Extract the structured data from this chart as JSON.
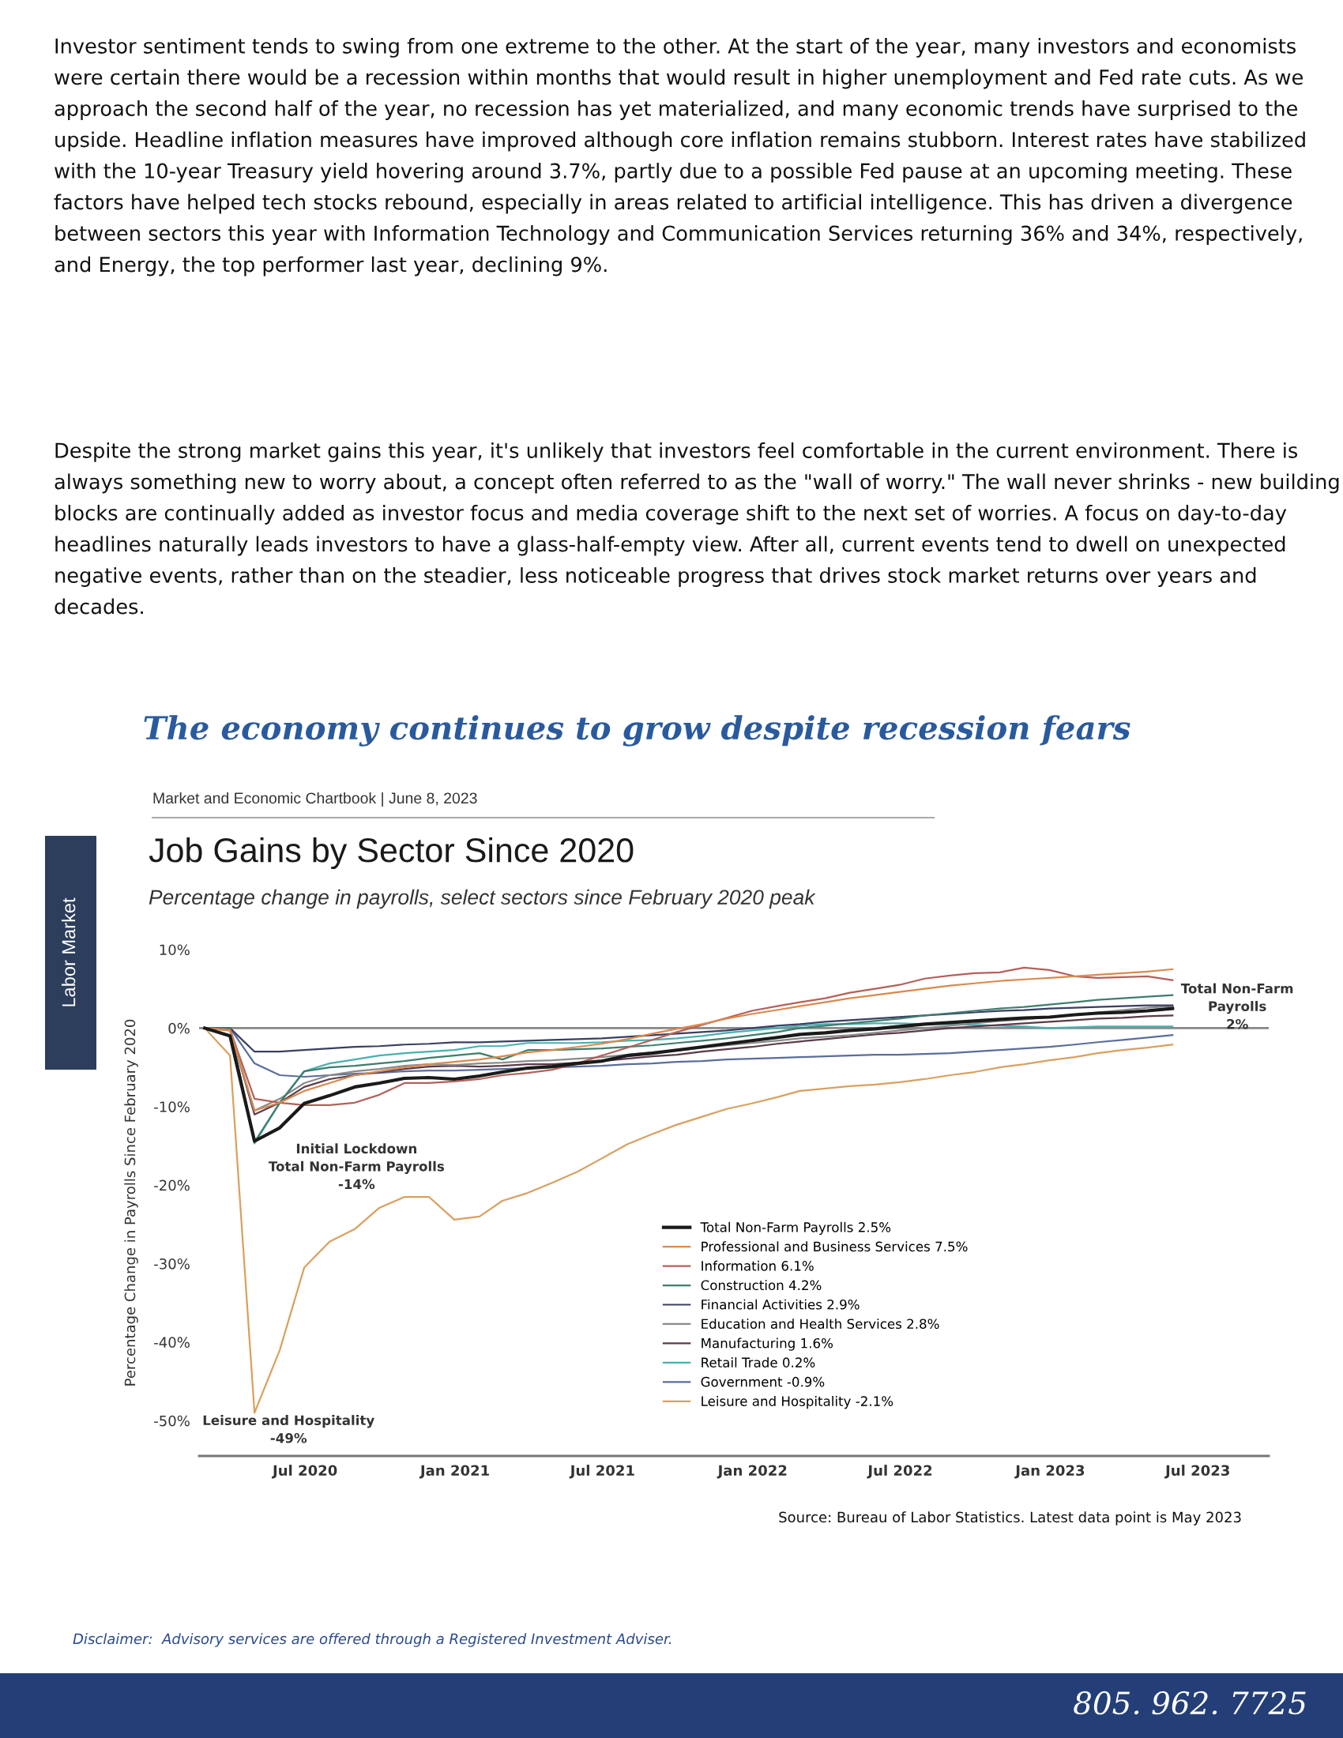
{
  "chart_data": {
    "type": "line",
    "title": "Job Gains by Sector Since 2020",
    "subtitle": "Percentage change in payrolls, select sectors since February 2020 peak",
    "ylabel": "Percentage Change in Payrolls Since February 2020",
    "x": [
      "2020-02-29",
      "2020-03-31",
      "2020-04-30",
      "2020-05-31",
      "2020-06-30",
      "2020-07-31",
      "2020-08-31",
      "2020-09-30",
      "2020-10-31",
      "2020-11-30",
      "2020-12-31",
      "2021-01-31",
      "2021-02-28",
      "2021-03-31",
      "2021-04-30",
      "2021-05-31",
      "2021-06-30",
      "2021-07-31",
      "2021-08-31",
      "2021-09-30",
      "2021-10-31",
      "2021-11-30",
      "2021-12-31",
      "2022-01-31",
      "2022-02-28",
      "2022-03-31",
      "2022-04-30",
      "2022-05-31",
      "2022-06-30",
      "2022-07-31",
      "2022-08-31",
      "2022-09-30",
      "2022-10-31",
      "2022-11-30",
      "2022-12-31",
      "2023-01-31",
      "2023-02-28",
      "2023-03-31",
      "2023-04-30",
      "2023-05-31"
    ],
    "series": [
      {
        "name": "Total Non-Farm Payrolls 2.5%",
        "color": "#1a1a1a",
        "values": [
          0,
          -1.0,
          -14.4,
          -12.7,
          -9.6,
          -8.6,
          -7.5,
          -7.0,
          -6.4,
          -6.3,
          -6.5,
          -6.1,
          -5.6,
          -5.1,
          -4.9,
          -4.5,
          -4.2,
          -3.5,
          -3.2,
          -2.8,
          -2.4,
          -2.0,
          -1.6,
          -1.2,
          -0.8,
          -0.6,
          -0.3,
          -0.1,
          0.2,
          0.5,
          0.7,
          0.9,
          1.1,
          1.3,
          1.4,
          1.7,
          1.9,
          2.0,
          2.2,
          2.5
        ]
      },
      {
        "name": "Professional and Business Services 7.5%",
        "color": "#d98a4e",
        "values": [
          0,
          -0.3,
          -10.5,
          -9.5,
          -8.0,
          -7.0,
          -6.0,
          -5.5,
          -5.0,
          -4.6,
          -4.3,
          -4.0,
          -3.6,
          -3.1,
          -2.8,
          -2.4,
          -2.0,
          -1.4,
          -0.7,
          -0.1,
          0.5,
          1.2,
          1.8,
          2.3,
          2.8,
          3.3,
          3.8,
          4.2,
          4.6,
          5.0,
          5.4,
          5.7,
          6.0,
          6.2,
          6.4,
          6.6,
          6.8,
          7.0,
          7.2,
          7.5
        ]
      },
      {
        "name": "Information 6.1%",
        "color": "#b5605a",
        "values": [
          0,
          -0.2,
          -9.0,
          -9.5,
          -9.8,
          -9.8,
          -9.5,
          -8.5,
          -7.0,
          -7.0,
          -6.8,
          -6.5,
          -6.0,
          -5.7,
          -5.3,
          -4.5,
          -3.5,
          -2.5,
          -1.5,
          -0.5,
          0.4,
          1.3,
          2.2,
          2.8,
          3.3,
          3.8,
          4.5,
          5.0,
          5.5,
          6.3,
          6.7,
          7.0,
          7.1,
          7.7,
          7.4,
          6.6,
          6.4,
          6.5,
          6.6,
          6.1
        ]
      },
      {
        "name": "Construction 4.2%",
        "color": "#3f7d6e",
        "values": [
          0,
          0,
          -14.5,
          -9.5,
          -5.5,
          -5.0,
          -4.8,
          -4.5,
          -4.2,
          -3.8,
          -3.5,
          -3.2,
          -4.0,
          -2.8,
          -2.8,
          -2.7,
          -2.6,
          -2.4,
          -2.2,
          -1.9,
          -1.6,
          -1.3,
          -0.9,
          -0.5,
          0,
          0.3,
          0.6,
          0.9,
          1.2,
          1.6,
          1.9,
          2.2,
          2.5,
          2.7,
          3.0,
          3.3,
          3.6,
          3.8,
          4.0,
          4.2
        ]
      },
      {
        "name": "Financial Activities 2.9%",
        "color": "#3a3f63",
        "values": [
          0,
          0,
          -3.0,
          -3.0,
          -2.8,
          -2.6,
          -2.4,
          -2.3,
          -2.1,
          -2.0,
          -1.8,
          -1.8,
          -1.7,
          -1.6,
          -1.5,
          -1.4,
          -1.3,
          -1.1,
          -0.9,
          -0.7,
          -0.5,
          -0.3,
          0,
          0.3,
          0.5,
          0.8,
          1.0,
          1.2,
          1.4,
          1.6,
          1.8,
          2.0,
          2.2,
          2.3,
          2.5,
          2.6,
          2.7,
          2.8,
          2.9,
          2.9
        ]
      },
      {
        "name": "Education and Health Services 2.8%",
        "color": "#8a8a8a",
        "values": [
          0,
          -0.2,
          -10.5,
          -9.0,
          -7.0,
          -6.0,
          -5.5,
          -5.2,
          -4.8,
          -4.6,
          -4.7,
          -4.5,
          -4.4,
          -4.2,
          -4.1,
          -3.9,
          -3.7,
          -3.4,
          -3.1,
          -2.9,
          -2.5,
          -2.2,
          -1.9,
          -1.6,
          -1.3,
          -1.1,
          -0.9,
          -0.6,
          -0.3,
          0,
          0.3,
          0.6,
          0.9,
          1.1,
          1.4,
          1.7,
          2.0,
          2.3,
          2.6,
          2.8
        ]
      },
      {
        "name": "Manufacturing 1.6%",
        "color": "#5a3a4a",
        "values": [
          0,
          -0.1,
          -11.0,
          -9.5,
          -7.5,
          -6.5,
          -6.0,
          -5.6,
          -5.2,
          -4.9,
          -4.8,
          -4.9,
          -4.8,
          -4.6,
          -4.6,
          -4.4,
          -4.2,
          -3.9,
          -3.6,
          -3.4,
          -3.0,
          -2.7,
          -2.4,
          -2.0,
          -1.7,
          -1.4,
          -1.1,
          -0.8,
          -0.6,
          -0.3,
          0,
          0.2,
          0.4,
          0.6,
          0.8,
          1.0,
          1.2,
          1.3,
          1.5,
          1.6
        ]
      },
      {
        "name": "Retail Trade 0.2%",
        "color": "#4ab0b0",
        "values": [
          0,
          -0.3,
          -14.7,
          -9.5,
          -5.5,
          -4.5,
          -4.0,
          -3.5,
          -3.2,
          -3.0,
          -2.8,
          -2.3,
          -2.3,
          -1.9,
          -1.9,
          -1.9,
          -1.8,
          -1.6,
          -1.5,
          -1.3,
          -1.0,
          -0.6,
          -0.3,
          0,
          0.3,
          0.5,
          0.5,
          0.6,
          0.6,
          0.5,
          0.5,
          0.4,
          0.3,
          0.2,
          0,
          0.1,
          0.2,
          0.2,
          0.2,
          0.2
        ]
      },
      {
        "name": "Government -0.9%",
        "color": "#5a6e9a",
        "values": [
          0,
          0,
          -4.5,
          -6.0,
          -6.2,
          -6.0,
          -5.8,
          -5.7,
          -5.5,
          -5.4,
          -5.4,
          -5.3,
          -5.2,
          -5.1,
          -5.0,
          -4.9,
          -4.8,
          -4.6,
          -4.5,
          -4.3,
          -4.2,
          -4.0,
          -3.9,
          -3.8,
          -3.7,
          -3.6,
          -3.5,
          -3.4,
          -3.4,
          -3.3,
          -3.2,
          -3.0,
          -2.8,
          -2.6,
          -2.4,
          -2.1,
          -1.8,
          -1.5,
          -1.2,
          -0.9
        ]
      },
      {
        "name": "Leisure and Hospitality -2.1%",
        "color": "#d9a060",
        "values": [
          0,
          -3.5,
          -49,
          -41,
          -30.5,
          -27.2,
          -25.6,
          -22.9,
          -21.5,
          -21.5,
          -24.4,
          -24.0,
          -22.0,
          -21.0,
          -19.7,
          -18.3,
          -16.6,
          -14.8,
          -13.5,
          -12.3,
          -11.3,
          -10.3,
          -9.6,
          -8.8,
          -8.0,
          -7.7,
          -7.4,
          -7.2,
          -6.9,
          -6.5,
          -6.0,
          -5.6,
          -5.0,
          -4.6,
          -4.1,
          -3.7,
          -3.2,
          -2.8,
          -2.5,
          -2.1
        ]
      }
    ],
    "xlim": [
      "2020-02-22",
      "2023-09-26"
    ],
    "xticks": [
      {
        "value": "2020-07-01",
        "label": "Jul 2020"
      },
      {
        "value": "2021-01-01",
        "label": "Jan 2021"
      },
      {
        "value": "2021-07-01",
        "label": "Jul 2021"
      },
      {
        "value": "2022-01-01",
        "label": "Jan 2022"
      },
      {
        "value": "2022-07-01",
        "label": "Jul 2022"
      },
      {
        "value": "2023-01-01",
        "label": "Jan 2023"
      },
      {
        "value": "2023-07-01",
        "label": "Jul 2023"
      }
    ],
    "ylim": [
      -54.5,
      10
    ],
    "yticks": [
      {
        "value": 10,
        "label": "10%"
      },
      {
        "value": 0,
        "label": "0%"
      },
      {
        "value": -10,
        "label": "-10%"
      },
      {
        "value": -20,
        "label": "-20%"
      },
      {
        "value": -30,
        "label": "-30%"
      },
      {
        "value": -40,
        "label": "-40%"
      },
      {
        "value": -50,
        "label": "-50%"
      }
    ],
    "ref_lines": [
      {
        "axis": "y",
        "value": 0,
        "color": "#888888"
      }
    ],
    "grid": false,
    "legend": "bottom right",
    "line_style": "solid",
    "marker": "none",
    "annotations": [
      {
        "text": "Initial Lockdown\nTotal Non-Farm Payrolls\n-14%",
        "x": "2020-04-30",
        "y": -14.4
      },
      {
        "text": "Leisure and Hospitality\n-49%",
        "x": "2020-04-30",
        "y": -49
      },
      {
        "text": "Total Non-Farm\nPayrolls\n2%",
        "x": "2023-05-31",
        "y": 2.5
      },
      "Investor sentiment tends to swing from one extreme to the other. At the start of the year, many investors and economists were certain there would be a recession within months that would result in higher unemployment and Fed rate cuts. As we approach the second half of the year, no recession has yet materialized, and many economic trends have surprised to the upside. Headline inflation measures have improved although core inflation remains stubborn. Interest rates have stabilized with the 10-year Treasury yield hovering around 3.7%, partly due to a possible Fed pause at an upcoming meeting. These factors have helped tech stocks rebound, especially in areas related to artificial intelligence. This has driven a divergence between sectors this year with Information Technology and Communication Services returning 36% and 34%, respectively, and Energy, the top performer last year, declining 9%.",
      "Despite the strong market gains this year, it's unlikely that investors feel comfortable in the current environment. There is always something new to worry about, a concept often referred to as the \"wall of worry.\" The wall never shrinks - new building blocks are continually added as investor focus and media coverage shift to the next set of worries. A focus on day-to-day headlines naturally leads investors to have a glass-half-empty view. After all, current events tend to dwell on unexpected negative events, rather than on the steadier, less noticeable progress that drives stock market returns over years and decades.",
      "The economy continues to grow despite recession fears",
      "Market and Economic Chartbook | June 8, 2023",
      "Labor Market",
      "Source: Bureau of Labor Statistics. Latest data point is May 2023",
      "Disclaimer:  Advisory services are offered through a Registered Investment Adviser.",
      "805. 962. 7725"
    ]
  }
}
